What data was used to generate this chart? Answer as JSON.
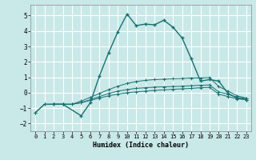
{
  "xlabel": "Humidex (Indice chaleur)",
  "xlim": [
    -0.5,
    23.5
  ],
  "ylim": [
    -2.5,
    5.7
  ],
  "yticks": [
    -2,
    -1,
    0,
    1,
    2,
    3,
    4,
    5
  ],
  "xticks": [
    0,
    1,
    2,
    3,
    4,
    5,
    6,
    7,
    8,
    9,
    10,
    11,
    12,
    13,
    14,
    15,
    16,
    17,
    18,
    19,
    20,
    21,
    22,
    23
  ],
  "bg_color": "#c9e8e8",
  "grid_color": "#ffffff",
  "line_color": "#1a7070",
  "line1_x": [
    0,
    1,
    2,
    3,
    4,
    5,
    6,
    7,
    8,
    9,
    10,
    11,
    12,
    13,
    14,
    15,
    16,
    17,
    18,
    19,
    20,
    21,
    22,
    23
  ],
  "line1_y": [
    -1.3,
    -0.75,
    -0.75,
    -0.75,
    -0.75,
    -0.65,
    -0.5,
    -0.35,
    -0.2,
    -0.1,
    0.0,
    0.05,
    0.1,
    0.15,
    0.18,
    0.22,
    0.25,
    0.28,
    0.32,
    0.35,
    -0.1,
    -0.25,
    -0.4,
    -0.45
  ],
  "line2_x": [
    0,
    1,
    2,
    3,
    4,
    5,
    6,
    7,
    8,
    9,
    10,
    11,
    12,
    13,
    14,
    15,
    16,
    17,
    18,
    19,
    20,
    21,
    22,
    23
  ],
  "line2_y": [
    -1.3,
    -0.75,
    -0.75,
    -0.75,
    -0.75,
    -0.65,
    -0.45,
    -0.25,
    -0.05,
    0.1,
    0.2,
    0.28,
    0.32,
    0.36,
    0.38,
    0.4,
    0.42,
    0.45,
    0.48,
    0.5,
    0.05,
    -0.1,
    -0.3,
    -0.38
  ],
  "line3_x": [
    0,
    1,
    2,
    3,
    4,
    5,
    6,
    7,
    8,
    9,
    10,
    11,
    12,
    13,
    14,
    15,
    16,
    17,
    18,
    19,
    20,
    21,
    22,
    23
  ],
  "line3_y": [
    -1.3,
    -0.75,
    -0.75,
    -0.75,
    -0.75,
    -0.55,
    -0.3,
    -0.05,
    0.2,
    0.42,
    0.6,
    0.72,
    0.8,
    0.85,
    0.88,
    0.9,
    0.92,
    0.95,
    0.95,
    0.98,
    0.4,
    0.1,
    -0.2,
    -0.35
  ],
  "line4_x": [
    2,
    3,
    5,
    6,
    7,
    8,
    9,
    10,
    11,
    12,
    13,
    14,
    15,
    16,
    17,
    18,
    19,
    20,
    21,
    22,
    23
  ],
  "line4_y": [
    -0.75,
    -0.75,
    -1.5,
    -0.65,
    1.1,
    2.6,
    3.95,
    5.1,
    4.35,
    4.45,
    4.4,
    4.7,
    4.25,
    3.55,
    2.2,
    0.75,
    0.85,
    0.75,
    -0.05,
    -0.35,
    -0.45
  ]
}
